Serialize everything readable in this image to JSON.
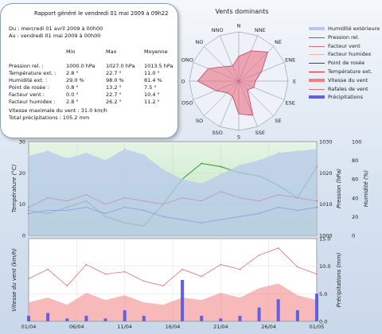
{
  "report": {
    "title": "Rapport généré le vendredi 01 mai 2009 à 09h22",
    "from": "Du : mercredi 01 avril 2009 à 00h00",
    "to": "Au : vendredi 01 mai 2009 à 00h00",
    "headers": [
      "Min",
      "Max",
      "Moyenne"
    ],
    "rows": [
      {
        "label": "Pression rel. :",
        "min": "1000.0 hPa",
        "max": "1027.0 hPa",
        "avg": "1013.5 hPa"
      },
      {
        "label": "Température ext. :",
        "min": "2.8 °",
        "max": "22.7 °",
        "avg": "11.0 °"
      },
      {
        "label": "Humidité ext. :",
        "min": "29.0 %",
        "max": "98.0 %",
        "avg": "81.4 %"
      },
      {
        "label": "Point de rosée :",
        "min": "0.8 °",
        "max": "13.2 °",
        "avg": "7.5 °"
      },
      {
        "label": "Facteur vent :",
        "min": "0.0 °",
        "max": "22.7 °",
        "avg": "10.4 °"
      },
      {
        "label": "Facteur humidex :",
        "min": "2.8 °",
        "max": "26.2 °",
        "avg": "11.2 °"
      }
    ],
    "max_wind": "Vitesse maximale du vent : 31.0 km/h",
    "total_precip": "Total précipitations : 105.2 mm"
  },
  "legend": [
    {
      "label": "Humidité extérieure",
      "color": "#b8c8ec",
      "kind": "area"
    },
    {
      "label": "Pression rel.",
      "color": "#2a9a2a",
      "kind": "line"
    },
    {
      "label": "Facteur vent",
      "color": "#d07070",
      "kind": "line"
    },
    {
      "label": "Facteur humidex",
      "color": "#e8b0b0",
      "kind": "line"
    },
    {
      "label": "Point de rosée",
      "color": "#2040c0",
      "kind": "line"
    },
    {
      "label": "Température ext.",
      "color": "#e02020",
      "kind": "line"
    },
    {
      "label": "Vitesse du vent",
      "color": "#f08080",
      "kind": "area"
    },
    {
      "label": "Rafales de vent",
      "color": "#e07070",
      "kind": "line"
    },
    {
      "label": "Précipitations",
      "color": "#6060e0",
      "kind": "area"
    }
  ],
  "chart_data": [
    {
      "type": "radar",
      "title": "Vents dominants",
      "directions": [
        "N",
        "NNE",
        "NE",
        "ENE",
        "E",
        "ESE",
        "SE",
        "SSE",
        "S",
        "SSO",
        "SO",
        "OSO",
        "O",
        "ONO",
        "NO",
        "NNO"
      ],
      "values": [
        3,
        4,
        5,
        3,
        2,
        2,
        1.5,
        4.5,
        4,
        2,
        2,
        3,
        5,
        4,
        2.5,
        2
      ]
    },
    {
      "type": "line",
      "x_ticks": [
        "01/04",
        "06/04",
        "11/04",
        "16/04",
        "21/04",
        "26/04",
        "01/05"
      ],
      "yleft_label": "Température (°C)",
      "yleft_ticks": [
        "0",
        "10",
        "20",
        "30"
      ],
      "yleft_range": [
        0,
        30
      ],
      "yright1_label": "Pression (hPa)",
      "yright1_ticks": [
        "1000",
        "1010",
        "1020",
        "1030"
      ],
      "yright1_range": [
        1000,
        1030
      ],
      "yright2_label": "Humidité (%)",
      "yright2_ticks": [
        "0",
        "20",
        "40",
        "60",
        "80",
        "100"
      ],
      "yright2_range": [
        0,
        100
      ],
      "days": [
        0,
        2,
        4,
        6,
        8,
        10,
        12,
        14,
        16,
        18,
        20,
        22,
        24,
        26,
        28,
        30
      ],
      "series": [
        {
          "name": "Pression rel.",
          "axis": "pressure",
          "values": [
            1008,
            1007,
            1009,
            1011,
            1006,
            1004,
            1003,
            1010,
            1018,
            1023,
            1022,
            1020,
            1019,
            1016,
            1012,
            1022
          ]
        },
        {
          "name": "Température ext.",
          "axis": "temp",
          "values": [
            9,
            12,
            11,
            13,
            10,
            12,
            11,
            10,
            12,
            11,
            14,
            12,
            11,
            13,
            12,
            11
          ]
        },
        {
          "name": "Point de rosée",
          "axis": "temp",
          "values": [
            7,
            8,
            8,
            9,
            7,
            9,
            8,
            6,
            5,
            4,
            5,
            6,
            7,
            9,
            8,
            9
          ]
        },
        {
          "name": "Humidité extérieure",
          "axis": "humidity",
          "values": [
            85,
            90,
            82,
            88,
            80,
            92,
            86,
            70,
            60,
            55,
            65,
            75,
            80,
            88,
            90,
            92
          ]
        }
      ]
    },
    {
      "type": "bar",
      "ylabel": "Vitesse du vent (km/h)",
      "yright_label": "Précipitations (mm)",
      "yright_ticks": [
        "0.0",
        "5.0",
        "10.0",
        "15.0"
      ],
      "yright_range": [
        0,
        15
      ],
      "days": [
        0,
        2,
        4,
        6,
        8,
        10,
        12,
        14,
        16,
        18,
        20,
        22,
        24,
        26,
        28,
        30
      ],
      "series": [
        {
          "name": "Vitesse du vent",
          "values": [
            8,
            10,
            7,
            12,
            9,
            11,
            8,
            7,
            10,
            9,
            12,
            10,
            14,
            16,
            11,
            9
          ]
        },
        {
          "name": "Rafales de vent",
          "values": [
            18,
            22,
            15,
            24,
            20,
            21,
            17,
            15,
            22,
            19,
            24,
            22,
            28,
            31,
            23,
            20
          ]
        },
        {
          "name": "Précipitations",
          "values": [
            1.0,
            1.5,
            0.5,
            1.0,
            0.5,
            2.0,
            1.0,
            0.0,
            7.5,
            1.0,
            0.5,
            1.0,
            2.5,
            4.0,
            2.0,
            5.0
          ]
        }
      ]
    }
  ]
}
